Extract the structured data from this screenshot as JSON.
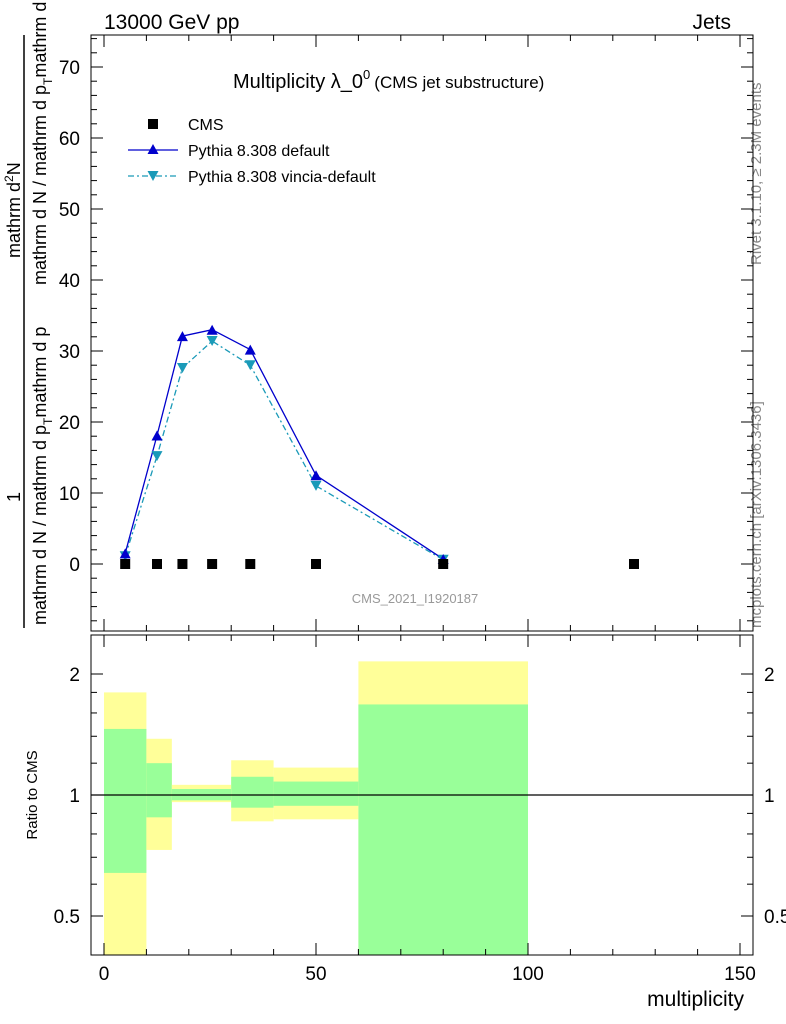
{
  "header": {
    "energy_label": "13000 GeV pp",
    "category_label": "Jets"
  },
  "side_text": {
    "rivet_label": "Rivet 3.1.10, ≥ 2.3M events",
    "source_label": "mcplots.cern.ch [arXiv:1306.3436]"
  },
  "colors": {
    "cms": "#000000",
    "pythia_default": "#0000cc",
    "pythia_vincia": "#1a9ab8",
    "band_outer": "#ffff99",
    "band_inner": "#99ff99"
  },
  "chart_data": [
    {
      "type": "scatter",
      "title": "Multiplicity λ_0",
      "title_superscript": "0",
      "subtitle": "(CMS jet substructure)",
      "ylabel_top": "1",
      "ylabel_bottom": "mathrm d N / mathrm d p",
      "ylabel_bottom_sub": "T",
      "ylabel_bottom_tail": "mathrm d p",
      "ylabel_bottom_tail2": "mathrm d lambda",
      "ylabel_num": "mathrm d",
      "ylabel_num_sup": "2",
      "ylabel_num_tail": "N",
      "xlim": [
        -1,
        151
      ],
      "ylim": [
        -8.5,
        75
      ],
      "yticks": [
        0,
        10,
        20,
        30,
        40,
        50,
        60,
        70
      ],
      "watermark": "CMS_2021_I1920187",
      "legend_position": "top-left",
      "series": [
        {
          "name": "CMS",
          "style": "markers",
          "marker": "square",
          "x": [
            5,
            12.5,
            18.5,
            25.5,
            34.5,
            50,
            80,
            125
          ],
          "y": [
            0,
            0,
            0,
            0,
            0,
            0,
            0,
            0
          ]
        },
        {
          "name": "Pythia 8.308 default",
          "style": "line-solid",
          "marker": "triangle-up",
          "x": [
            5,
            12.5,
            18.5,
            25.5,
            34.5,
            50,
            80
          ],
          "y": [
            1.5,
            18.1,
            32.1,
            33.0,
            30.2,
            12.5,
            0.7
          ]
        },
        {
          "name": "Pythia 8.308 vincia-default",
          "style": "line-dashdot",
          "marker": "triangle-down",
          "x": [
            5,
            12.5,
            18.5,
            25.5,
            34.5,
            50,
            80
          ],
          "y": [
            1.1,
            15.2,
            27.6,
            31.4,
            28.0,
            11.0,
            0.6
          ]
        }
      ]
    },
    {
      "type": "area",
      "ylabel": "Ratio to CMS",
      "xlabel": "multiplicity",
      "xlim": [
        -1,
        151
      ],
      "ylim": [
        0.4,
        2.3
      ],
      "yscale": "log",
      "xticks": [
        0,
        50,
        100,
        150
      ],
      "yticks": [
        0.5,
        1,
        2
      ],
      "reference_line": 1,
      "bands": [
        {
          "x0": 0,
          "x1": 10,
          "outer": [
            0.4,
            1.8
          ],
          "inner": [
            0.64,
            1.46
          ]
        },
        {
          "x0": 10,
          "x1": 16,
          "outer": [
            0.73,
            1.38
          ],
          "inner": [
            0.88,
            1.2
          ]
        },
        {
          "x0": 16,
          "x1": 30,
          "outer": [
            0.96,
            1.06
          ],
          "inner": [
            0.97,
            1.035
          ]
        },
        {
          "x0": 30,
          "x1": 40,
          "outer": [
            0.86,
            1.22
          ],
          "inner": [
            0.93,
            1.11
          ]
        },
        {
          "x0": 40,
          "x1": 60,
          "outer": [
            0.87,
            1.17
          ],
          "inner": [
            0.94,
            1.08
          ]
        },
        {
          "x0": 60,
          "x1": 100,
          "outer": [
            0.4,
            2.15
          ],
          "inner": [
            0.4,
            1.68
          ]
        }
      ]
    }
  ]
}
